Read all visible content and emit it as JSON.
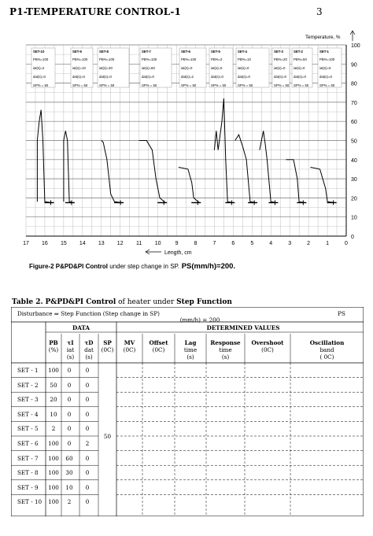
{
  "header": {
    "title": "P1-TEMPERATURE CONTROL-1",
    "page_number": "3"
  },
  "chart_data": {
    "type": "line",
    "ylabel": "Temperature, %",
    "xlabel": "Length, cm",
    "x_ticks": [
      "17",
      "16",
      "15",
      "14",
      "13",
      "12",
      "11",
      "10",
      "9",
      "8",
      "7",
      "6",
      "5",
      "4",
      "3",
      "2",
      "1",
      "0"
    ],
    "y_ticks": [
      "0",
      "10",
      "20",
      "30",
      "40",
      "50",
      "60",
      "70",
      "80",
      "90",
      "100"
    ],
    "xlim": [
      17,
      0
    ],
    "ylim": [
      0,
      100
    ],
    "grid": true,
    "set_boxes": [
      {
        "name": "SET-10",
        "lines": [
          "PB%=100",
          "iat(s)=2",
          "dat(s)=0",
          "SP% = 50"
        ]
      },
      {
        "name": "SET-9",
        "lines": [
          "PB%=100",
          "iat(s)=10",
          "dat(s)=0",
          "SP% = 50"
        ]
      },
      {
        "name": "SET-8",
        "lines": [
          "PB%=100",
          "iat(s)=30",
          "dat(s)=0",
          "SP% = 50"
        ]
      },
      {
        "name": "SET-7",
        "lines": [
          "PB%=100",
          "iat(s)=60",
          "dat(s)=0",
          "SP% = 50"
        ]
      },
      {
        "name": "SET-6",
        "lines": [
          "PB%=100",
          "iat(s)=0",
          "dat(s)=2",
          "SP% = 50"
        ]
      },
      {
        "name": "SET-5",
        "lines": [
          "PB%=2",
          "iat(s)=0",
          "dat(s)=0",
          "SP% = 50"
        ]
      },
      {
        "name": "SET-4",
        "lines": [
          "PB%=10",
          "iat(s)=0",
          "dat(s)=0",
          "SP% = 50"
        ]
      },
      {
        "name": "SET-3",
        "lines": [
          "PB%=20",
          "iat(s)=0",
          "dat(s)=0",
          "SP% = 50"
        ]
      },
      {
        "name": "SET-2",
        "lines": [
          "PB%=50",
          "iat(s)=0",
          "dat(s)=0",
          "SP% = 50"
        ]
      },
      {
        "name": "SET-1",
        "lines": [
          "PB%=100",
          "iat(s)=0",
          "dat(s)=0",
          "SP% = 50"
        ]
      }
    ],
    "series": [
      {
        "name": "SET-10",
        "points": [
          [
            16.4,
            18
          ],
          [
            16.4,
            50
          ],
          [
            16.3,
            60
          ],
          [
            16.2,
            66
          ],
          [
            16.1,
            50
          ],
          [
            16.0,
            18
          ],
          [
            15.6,
            17.5
          ]
        ]
      },
      {
        "name": "SET-9",
        "points": [
          [
            15.0,
            18
          ],
          [
            15.0,
            50
          ],
          [
            14.9,
            55
          ],
          [
            14.8,
            50
          ],
          [
            14.7,
            18
          ],
          [
            14.5,
            17.5
          ]
        ]
      },
      {
        "name": "SET-8",
        "points": [
          [
            13.0,
            50
          ],
          [
            12.9,
            49
          ],
          [
            12.7,
            40
          ],
          [
            12.5,
            22
          ],
          [
            12.3,
            18
          ],
          [
            11.9,
            17.5
          ]
        ]
      },
      {
        "name": "SET-7",
        "points": [
          [
            11.0,
            50
          ],
          [
            10.6,
            50
          ],
          [
            10.3,
            45
          ],
          [
            10.1,
            30
          ],
          [
            9.9,
            20
          ],
          [
            9.6,
            17.5
          ]
        ]
      },
      {
        "name": "SET-6",
        "points": [
          [
            8.9,
            36
          ],
          [
            8.4,
            35
          ],
          [
            8.2,
            28
          ],
          [
            8.1,
            20
          ],
          [
            7.8,
            17.5
          ]
        ]
      },
      {
        "name": "SET-5",
        "points": [
          [
            7.0,
            45
          ],
          [
            6.9,
            55
          ],
          [
            6.8,
            45
          ],
          [
            6.6,
            60
          ],
          [
            6.5,
            72
          ],
          [
            6.4,
            40
          ],
          [
            6.3,
            18
          ],
          [
            6.0,
            17.5
          ]
        ]
      },
      {
        "name": "SET-4",
        "points": [
          [
            5.9,
            50
          ],
          [
            5.7,
            53
          ],
          [
            5.5,
            47
          ],
          [
            5.3,
            40
          ],
          [
            5.1,
            18
          ],
          [
            4.8,
            17.5
          ]
        ]
      },
      {
        "name": "SET-3",
        "points": [
          [
            4.6,
            45
          ],
          [
            4.4,
            55
          ],
          [
            4.3,
            48
          ],
          [
            4.2,
            40
          ],
          [
            4.0,
            18
          ],
          [
            3.7,
            17.5
          ]
        ]
      },
      {
        "name": "SET-2",
        "points": [
          [
            3.2,
            40
          ],
          [
            2.8,
            40
          ],
          [
            2.6,
            30
          ],
          [
            2.5,
            18
          ],
          [
            2.2,
            17.5
          ]
        ]
      },
      {
        "name": "SET-1",
        "points": [
          [
            1.9,
            36
          ],
          [
            1.4,
            35
          ],
          [
            1.1,
            25
          ],
          [
            1.0,
            18
          ],
          [
            0.6,
            17.5
          ]
        ]
      }
    ]
  },
  "caption": {
    "prefix": "Figure-2",
    "bold_part": "P&PD&PI Control",
    "middle": " under step change in SP.",
    "formula": " PS(mm/h)=200."
  },
  "table2": {
    "title_prefix": "Table 2.",
    "title_bold": "P&PD&PI Control",
    "title_mid": " of heater under ",
    "title_bold2": "Step Function",
    "disturbance": "Disturbance ⇒ Step Function (Step change in SP)",
    "ps_label": "PS",
    "ps_value": "(mm/h) = 200",
    "data_header": "DATA",
    "determined_header": "DETERMINED VALUES",
    "col_pb": [
      "PB",
      "(%)"
    ],
    "col_ti": [
      "τI",
      "iat",
      "(s)"
    ],
    "col_td": [
      "τD",
      "dat",
      "(s)"
    ],
    "col_sp": [
      "SP",
      "(0C)"
    ],
    "col_mv": [
      "MV",
      "(0C)"
    ],
    "col_offset": [
      "Offset",
      "(0C)"
    ],
    "col_lag": [
      "Lag",
      "time",
      "(s)"
    ],
    "col_response": [
      "Response",
      "time",
      "(s)"
    ],
    "col_overshoot": [
      "Overshoot",
      "(0C)"
    ],
    "col_osc": [
      "Oscillation",
      "band",
      "( 0C)"
    ],
    "sp_value": "50",
    "rows": [
      {
        "set": "SET - 1",
        "pb": "100",
        "ti": "0",
        "td": "0"
      },
      {
        "set": "SET - 2",
        "pb": "50",
        "ti": "0",
        "td": "0"
      },
      {
        "set": "SET - 3",
        "pb": "20",
        "ti": "0",
        "td": "0"
      },
      {
        "set": "SET - 4",
        "pb": "10",
        "ti": "0",
        "td": "0"
      },
      {
        "set": "SET - 5",
        "pb": "2",
        "ti": "0",
        "td": "0"
      },
      {
        "set": "SET - 6",
        "pb": "100",
        "ti": "0",
        "td": "2"
      },
      {
        "set": "SET - 7",
        "pb": "100",
        "ti": "60",
        "td": "0"
      },
      {
        "set": "SET - 8",
        "pb": "100",
        "ti": "30",
        "td": "0"
      },
      {
        "set": "SET - 9",
        "pb": "100",
        "ti": "10",
        "td": "0"
      },
      {
        "set": "SET - 10",
        "pb": "100",
        "ti": "2",
        "td": "0"
      }
    ]
  }
}
